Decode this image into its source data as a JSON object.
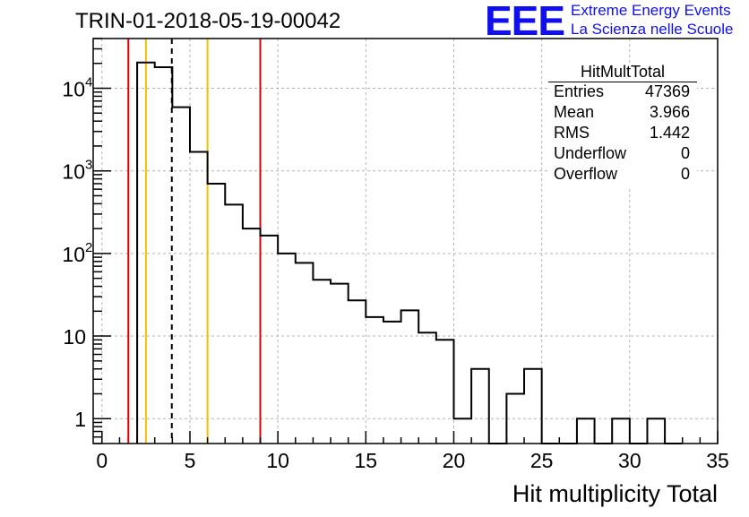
{
  "title": "TRIN-01-2018-05-19-00042",
  "logo": {
    "text": "EEE",
    "line1": "Extreme Energy Events",
    "line2": "La Scienza nelle Scuole",
    "color": "#1010ee"
  },
  "stats": {
    "name": "HitMultTotal",
    "rows": [
      {
        "key": "Entries",
        "value": "47369"
      },
      {
        "key": "Mean",
        "value": "3.966"
      },
      {
        "key": "RMS",
        "value": "1.442"
      },
      {
        "key": "Underflow",
        "value": "0"
      },
      {
        "key": "Overflow",
        "value": "0"
      }
    ]
  },
  "chart_data": {
    "type": "histogram",
    "xlabel": "Hit multiplicity Total",
    "ylabel": "",
    "xlim": [
      -0.5,
      35
    ],
    "ylim": [
      0.5,
      40000
    ],
    "yscale": "log",
    "grid": true,
    "xticks": [
      0,
      5,
      10,
      15,
      20,
      25,
      30,
      35
    ],
    "yticks": [
      {
        "value": 1,
        "label": "1"
      },
      {
        "value": 10,
        "label": "10"
      },
      {
        "value": 100,
        "label": "10",
        "exp": "2"
      },
      {
        "value": 1000,
        "label": "10",
        "exp": "3"
      },
      {
        "value": 10000,
        "label": "10",
        "exp": "4"
      }
    ],
    "bin_width": 1,
    "bins": [
      {
        "x": 2.5,
        "y": 20500
      },
      {
        "x": 3.5,
        "y": 18000
      },
      {
        "x": 4.5,
        "y": 5900
      },
      {
        "x": 5.5,
        "y": 1700
      },
      {
        "x": 6.5,
        "y": 700
      },
      {
        "x": 7.5,
        "y": 390
      },
      {
        "x": 8.5,
        "y": 200
      },
      {
        "x": 9.5,
        "y": 165
      },
      {
        "x": 10.5,
        "y": 100
      },
      {
        "x": 11.5,
        "y": 77
      },
      {
        "x": 12.5,
        "y": 48
      },
      {
        "x": 13.5,
        "y": 43
      },
      {
        "x": 14.5,
        "y": 27
      },
      {
        "x": 15.5,
        "y": 17
      },
      {
        "x": 16.5,
        "y": 15
      },
      {
        "x": 17.5,
        "y": 20.5
      },
      {
        "x": 18.5,
        "y": 11
      },
      {
        "x": 19.5,
        "y": 9
      },
      {
        "x": 20.5,
        "y": 1
      },
      {
        "x": 21.5,
        "y": 4
      },
      {
        "x": 22.5,
        "y": 0
      },
      {
        "x": 23.5,
        "y": 2
      },
      {
        "x": 24.5,
        "y": 4
      },
      {
        "x": 25.5,
        "y": 0
      },
      {
        "x": 26.5,
        "y": 0
      },
      {
        "x": 27.5,
        "y": 1
      },
      {
        "x": 28.5,
        "y": 0
      },
      {
        "x": 29.5,
        "y": 1
      },
      {
        "x": 30.5,
        "y": 0
      },
      {
        "x": 31.5,
        "y": 1
      },
      {
        "x": 32.5,
        "y": 0
      }
    ],
    "vlines": [
      {
        "x": 1.5,
        "color": "#dd0000",
        "style": "solid"
      },
      {
        "x": 2.5,
        "color": "#f2c000",
        "style": "solid"
      },
      {
        "x": 3.97,
        "color": "#000000",
        "style": "dashed"
      },
      {
        "x": 6.0,
        "color": "#f2c000",
        "style": "solid"
      },
      {
        "x": 9.0,
        "color": "#dd0000",
        "style": "solid"
      }
    ]
  }
}
